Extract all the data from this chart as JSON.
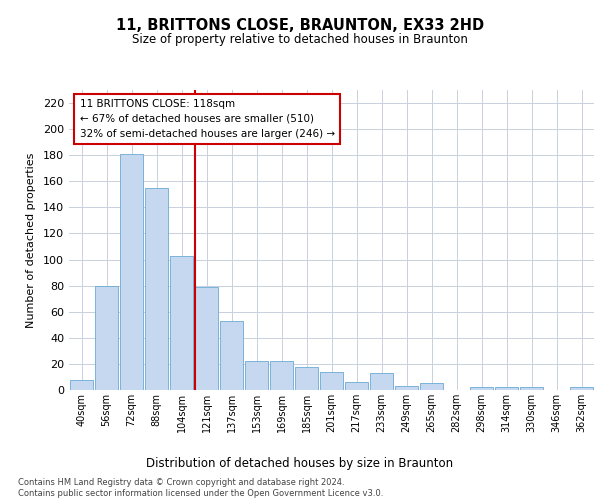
{
  "title_line1": "11, BRITTONS CLOSE, BRAUNTON, EX33 2HD",
  "title_line2": "Size of property relative to detached houses in Braunton",
  "xlabel": "Distribution of detached houses by size in Braunton",
  "ylabel": "Number of detached properties",
  "categories": [
    "40sqm",
    "56sqm",
    "72sqm",
    "88sqm",
    "104sqm",
    "121sqm",
    "137sqm",
    "153sqm",
    "169sqm",
    "185sqm",
    "201sqm",
    "217sqm",
    "233sqm",
    "249sqm",
    "265sqm",
    "282sqm",
    "298sqm",
    "314sqm",
    "330sqm",
    "346sqm",
    "362sqm"
  ],
  "values": [
    8,
    80,
    181,
    155,
    103,
    79,
    53,
    22,
    22,
    18,
    14,
    6,
    13,
    3,
    5,
    0,
    2,
    2,
    2,
    0,
    2
  ],
  "bar_color": "#c5d8f0",
  "bar_edge_color": "#6aaad4",
  "highlight_index": 5,
  "highlight_line_color": "#cc0000",
  "annotation_line1": "11 BRITTONS CLOSE: 118sqm",
  "annotation_line2": "← 67% of detached houses are smaller (510)",
  "annotation_line3": "32% of semi-detached houses are larger (246) →",
  "annotation_box_color": "#ffffff",
  "annotation_box_edge": "#cc0000",
  "ylim": [
    0,
    230
  ],
  "yticks": [
    0,
    20,
    40,
    60,
    80,
    100,
    120,
    140,
    160,
    180,
    200,
    220
  ],
  "footer_line1": "Contains HM Land Registry data © Crown copyright and database right 2024.",
  "footer_line2": "Contains public sector information licensed under the Open Government Licence v3.0.",
  "bg_color": "#ffffff",
  "grid_color": "#c8d0dc"
}
